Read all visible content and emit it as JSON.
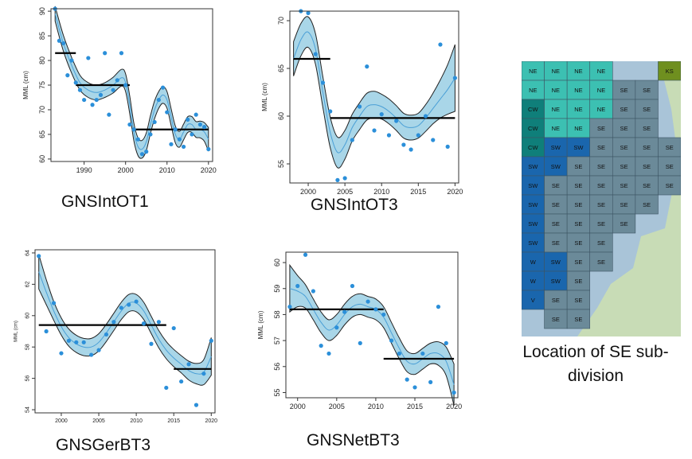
{
  "chart_data": [
    {
      "type": "line",
      "caption": "GNSIntOT1",
      "ylabel": "MML (cm)",
      "xlim": [
        1982,
        2021
      ],
      "ylim": [
        59.5,
        90.5
      ],
      "xticks": [
        1990,
        2000,
        2010,
        2020
      ],
      "xtick_labels": [
        "1990",
        "2000",
        "2010",
        "2020"
      ],
      "yticks": [
        60,
        65,
        70,
        75,
        80,
        85,
        90
      ],
      "ytick_labels": [
        "60",
        "65",
        "70",
        "75",
        "80",
        "85",
        "90"
      ],
      "points": {
        "x": [
          1983,
          1984,
          1985,
          1986,
          1987,
          1988,
          1989,
          1990,
          1991,
          1992,
          1993,
          1994,
          1995,
          1996,
          1997,
          1998,
          1999,
          2000,
          2001,
          2002,
          2003,
          2004,
          2005,
          2006,
          2007,
          2008,
          2009,
          2010,
          2011,
          2012,
          2013,
          2014,
          2015,
          2016,
          2017,
          2018,
          2019,
          2020
        ],
        "y": [
          90.5,
          84.0,
          83.5,
          77.0,
          80.0,
          75.5,
          74.0,
          72.0,
          80.5,
          71.0,
          72.0,
          73.0,
          81.5,
          69.0,
          74.0,
          76.0,
          81.5,
          75.0,
          67.0,
          66.0,
          64.0,
          61.0,
          61.5,
          65.0,
          67.5,
          72.0,
          74.5,
          69.5,
          63.0,
          66.0,
          64.0,
          62.5,
          68.0,
          65.0,
          69.0,
          67.0,
          66.5,
          62.0
        ]
      },
      "smooth": {
        "x": [
          1983,
          1985,
          1987,
          1989,
          1991,
          1993,
          1995,
          1997,
          1999,
          2000,
          2001,
          2002,
          2003,
          2004,
          2005,
          2006,
          2007,
          2008,
          2009,
          2010,
          2011,
          2012,
          2013,
          2014,
          2015,
          2016,
          2017,
          2018,
          2019,
          2020
        ],
        "y": [
          89.5,
          83.5,
          79.0,
          75.5,
          74.0,
          73.5,
          74.0,
          75.0,
          76.5,
          75.5,
          71.0,
          65.5,
          62.5,
          62.0,
          63.5,
          67.0,
          70.0,
          72.0,
          73.0,
          72.0,
          68.5,
          65.0,
          64.0,
          65.5,
          67.0,
          67.0,
          66.0,
          66.0,
          65.5,
          64.0
        ]
      },
      "band_halfwidth": [
        1.5,
        1.6,
        1.6,
        1.5,
        1.5,
        1.5,
        1.5,
        1.6,
        1.7,
        1.8,
        1.8,
        1.8,
        1.8,
        1.8,
        1.8,
        1.8,
        1.8,
        1.7,
        1.7,
        1.7,
        1.7,
        1.7,
        1.6,
        1.6,
        1.6,
        1.6,
        1.6,
        1.7,
        1.9,
        2.4
      ],
      "segments": [
        {
          "x0": 1983,
          "x1": 1988,
          "y": 81.5
        },
        {
          "x0": 1988,
          "x1": 2001,
          "y": 75.0
        },
        {
          "x0": 2002,
          "x1": 2020,
          "y": 66.0
        }
      ]
    },
    {
      "type": "line",
      "caption": "GNSIntOT3",
      "ylabel": "MML (cm)",
      "xlim": [
        1997.5,
        2020.5
      ],
      "ylim": [
        53.0,
        71.0
      ],
      "xticks": [
        2000,
        2005,
        2010,
        2015,
        2020
      ],
      "xtick_labels": [
        "2000",
        "2005",
        "2010",
        "2015",
        "2020"
      ],
      "yticks": [
        55,
        60,
        65,
        70
      ],
      "ytick_labels": [
        "55",
        "60",
        "65",
        "70"
      ],
      "points": {
        "x": [
          1999,
          2000,
          2001,
          2002,
          2003,
          2004,
          2005,
          2006,
          2007,
          2008,
          2009,
          2010,
          2011,
          2012,
          2013,
          2014,
          2015,
          2016,
          2017,
          2018,
          2019,
          2020
        ],
        "y": [
          71.0,
          70.8,
          66.5,
          63.5,
          60.5,
          53.3,
          53.5,
          57.5,
          61.0,
          65.2,
          58.5,
          60.2,
          58.0,
          59.5,
          57.0,
          56.5,
          58.0,
          60.0,
          57.5,
          67.5,
          56.8,
          64.0
        ]
      },
      "smooth": {
        "x": [
          1998,
          1999,
          2000,
          2001,
          2002,
          2003,
          2004,
          2005,
          2006,
          2007,
          2008,
          2009,
          2010,
          2011,
          2012,
          2013,
          2014,
          2015,
          2016,
          2017,
          2018,
          2019,
          2020
        ],
        "y": [
          66.0,
          68.0,
          68.8,
          67.0,
          62.5,
          58.3,
          56.2,
          57.0,
          58.8,
          60.0,
          61.0,
          61.2,
          61.0,
          60.5,
          59.8,
          59.0,
          58.8,
          59.0,
          59.8,
          60.8,
          61.8,
          62.8,
          64.0
        ]
      },
      "band_halfwidth": [
        1.8,
        1.7,
        1.6,
        1.6,
        1.6,
        1.6,
        1.6,
        1.5,
        1.4,
        1.4,
        1.4,
        1.4,
        1.3,
        1.3,
        1.3,
        1.3,
        1.3,
        1.3,
        1.4,
        1.6,
        2.0,
        2.6,
        3.5
      ],
      "segments": [
        {
          "x0": 1998,
          "x1": 2003,
          "y": 66.0
        },
        {
          "x0": 2003,
          "x1": 2020,
          "y": 59.8
        }
      ]
    },
    {
      "type": "line",
      "caption": "GNSGerBT3",
      "ylabel": "MML (cm)",
      "xlim": [
        1996.5,
        2020.5
      ],
      "ylim": [
        53.8,
        64.2
      ],
      "xticks": [
        2000,
        2005,
        2010,
        2015,
        2020
      ],
      "xtick_labels": [
        "2000",
        "2005",
        "2010",
        "2015",
        "2020"
      ],
      "yticks": [
        54,
        56,
        58,
        60,
        62,
        64
      ],
      "ytick_labels": [
        "54",
        "56",
        "58",
        "60",
        "62",
        "64"
      ],
      "points": {
        "x": [
          1997,
          1998,
          1999,
          2000,
          2001,
          2002,
          2003,
          2004,
          2005,
          2006,
          2007,
          2008,
          2009,
          2010,
          2011,
          2012,
          2013,
          2014,
          2015,
          2016,
          2017,
          2018,
          2019,
          2020
        ],
        "y": [
          63.8,
          59.0,
          60.8,
          57.6,
          58.4,
          58.3,
          58.3,
          57.5,
          57.8,
          58.8,
          59.6,
          60.5,
          60.7,
          60.9,
          59.5,
          58.2,
          59.6,
          55.4,
          59.2,
          55.8,
          56.9,
          54.3,
          56.3,
          58.4
        ]
      },
      "smooth": {
        "x": [
          1997,
          1998,
          1999,
          2000,
          2001,
          2002,
          2003,
          2004,
          2005,
          2006,
          2007,
          2008,
          2009,
          2010,
          2011,
          2012,
          2013,
          2014,
          2015,
          2016,
          2017,
          2018,
          2019,
          2020
        ],
        "y": [
          62.8,
          61.5,
          60.3,
          59.3,
          58.6,
          58.2,
          58.0,
          58.0,
          58.3,
          58.9,
          59.6,
          60.3,
          60.8,
          60.8,
          60.3,
          59.4,
          58.5,
          57.8,
          57.3,
          56.9,
          56.5,
          56.3,
          56.4,
          57.4
        ]
      },
      "band_halfwidth": [
        1.1,
        0.8,
        0.6,
        0.55,
        0.55,
        0.55,
        0.55,
        0.55,
        0.55,
        0.55,
        0.55,
        0.55,
        0.55,
        0.55,
        0.55,
        0.55,
        0.55,
        0.55,
        0.55,
        0.55,
        0.6,
        0.65,
        0.8,
        1.2
      ],
      "segments": [
        {
          "x0": 1997,
          "x1": 2014,
          "y": 59.4
        },
        {
          "x0": 2015,
          "x1": 2020,
          "y": 56.6
        }
      ]
    },
    {
      "type": "line",
      "caption": "GNSNetBT3",
      "ylabel": "MML (cm)",
      "xlim": [
        1998.5,
        2020.5
      ],
      "ylim": [
        54.8,
        60.4
      ],
      "xticks": [
        2000,
        2005,
        2010,
        2015,
        2020
      ],
      "xtick_labels": [
        "2000",
        "2005",
        "2010",
        "2015",
        "2020"
      ],
      "yticks": [
        55,
        56,
        57,
        58,
        59,
        60
      ],
      "ytick_labels": [
        "55",
        "56",
        "57",
        "58",
        "59",
        "60"
      ],
      "points": {
        "x": [
          1999,
          2000,
          2001,
          2002,
          2003,
          2004,
          2005,
          2006,
          2007,
          2008,
          2009,
          2010,
          2011,
          2012,
          2013,
          2014,
          2015,
          2016,
          2017,
          2018,
          2019,
          2020
        ],
        "y": [
          58.3,
          59.1,
          60.3,
          58.9,
          56.8,
          56.5,
          57.5,
          58.1,
          59.1,
          56.9,
          58.5,
          58.2,
          58.0,
          57.0,
          56.5,
          55.5,
          55.2,
          56.5,
          55.4,
          58.3,
          56.9,
          55.0
        ]
      },
      "smooth": {
        "x": [
          1999,
          2000,
          2001,
          2002,
          2003,
          2004,
          2005,
          2006,
          2007,
          2008,
          2009,
          2010,
          2011,
          2012,
          2013,
          2014,
          2015,
          2016,
          2017,
          2018,
          2019,
          2020
        ],
        "y": [
          59.0,
          58.9,
          58.7,
          58.2,
          57.7,
          57.4,
          57.6,
          58.0,
          58.3,
          58.4,
          58.3,
          58.2,
          57.9,
          57.3,
          56.7,
          56.2,
          56.1,
          56.3,
          56.5,
          56.5,
          56.2,
          55.3
        ]
      },
      "band_halfwidth": [
        0.9,
        0.6,
        0.45,
        0.4,
        0.4,
        0.4,
        0.4,
        0.4,
        0.4,
        0.4,
        0.4,
        0.4,
        0.4,
        0.4,
        0.4,
        0.4,
        0.4,
        0.4,
        0.4,
        0.45,
        0.55,
        0.8
      ],
      "segments": [
        {
          "x0": 1999,
          "x1": 2011,
          "y": 58.2
        },
        {
          "x0": 2011,
          "x1": 2020,
          "y": 56.3
        }
      ]
    }
  ],
  "map": {
    "caption": "Location of SE sub-division",
    "rows": [
      [
        "NE",
        "NE",
        "NE",
        "NE",
        "",
        "",
        "KS"
      ],
      [
        "NE",
        "NE",
        "NE",
        "NE",
        "SE",
        "SE",
        ""
      ],
      [
        "CW",
        "NE",
        "NE",
        "NE",
        "SE",
        "SE",
        ""
      ],
      [
        "CW",
        "NE",
        "NE",
        "SE",
        "SE",
        "SE",
        ""
      ],
      [
        "CW",
        "SW",
        "SW",
        "SE",
        "SE",
        "SE",
        "SE"
      ],
      [
        "SW",
        "SW",
        "SE",
        "SE",
        "SE",
        "SE",
        "SE"
      ],
      [
        "SW",
        "SE",
        "SE",
        "SE",
        "SE",
        "SE",
        "SE"
      ],
      [
        "SW",
        "SE",
        "SE",
        "SE",
        "SE",
        "SE",
        ""
      ],
      [
        "SW",
        "SE",
        "SE",
        "SE",
        "SE",
        "",
        ""
      ],
      [
        "SW",
        "SE",
        "SE",
        "SE",
        "",
        "",
        ""
      ],
      [
        "W",
        "SW",
        "SE",
        "SE",
        "",
        "",
        ""
      ],
      [
        "W",
        "SW",
        "SE",
        "",
        "",
        "",
        ""
      ],
      [
        "V",
        "SE",
        "SE",
        "",
        "",
        "",
        ""
      ],
      [
        "",
        "SE",
        "SE",
        "",
        "",
        "",
        ""
      ]
    ],
    "colors": {
      "NE": "#3cc0b2",
      "CW": "#0f7f7a",
      "SW": "#1a66ad",
      "W": "#1a66ad",
      "V": "#1a66ad",
      "SE": "#6b8a99",
      "KS": "#6f8f1f",
      "sea": "#a9c4d8",
      "land": "#c8dcb6",
      "grid": "#3d5564"
    }
  },
  "style": {
    "point_color": "#2b8fd9",
    "band_fill": "#a9d6e8",
    "band_edge": "#222222",
    "smooth_line": "#4a9fd6",
    "mean_line": "#000000"
  }
}
